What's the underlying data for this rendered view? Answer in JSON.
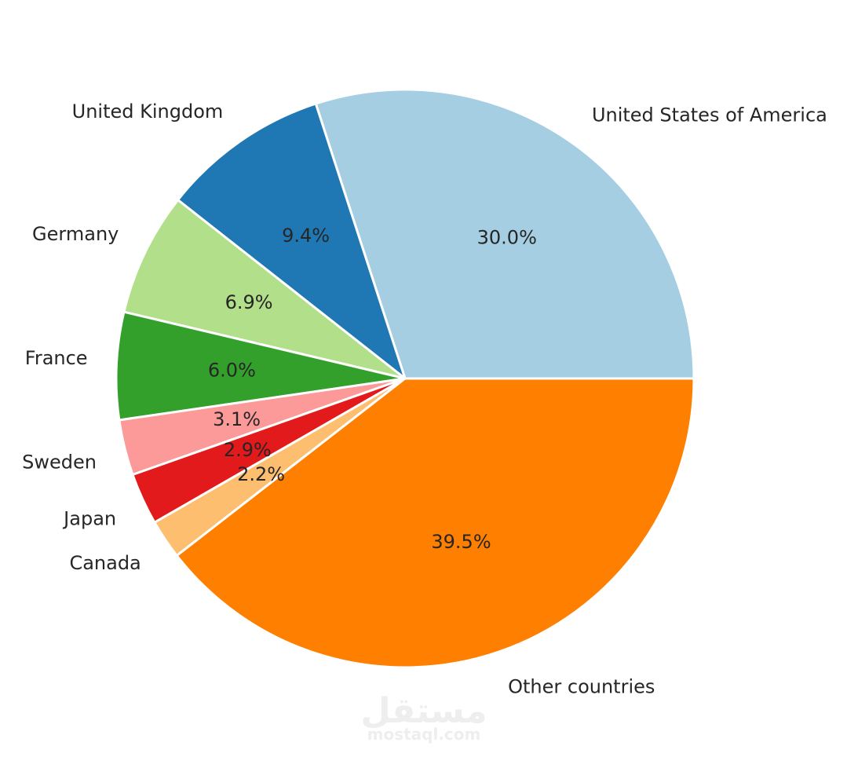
{
  "chart_data": {
    "type": "pie",
    "start_angle_deg": 0,
    "direction": "counterclockwise",
    "categories": [
      "United States of America",
      "United Kingdom",
      "Germany",
      "France",
      "Sweden",
      "Japan",
      "Canada",
      "Other countries"
    ],
    "values": [
      30.0,
      9.4,
      6.9,
      6.0,
      3.1,
      2.9,
      2.2,
      39.5
    ],
    "value_labels": [
      "30.0%",
      "9.4%",
      "6.9%",
      "6.0%",
      "3.1%",
      "2.9%",
      "2.2%",
      "39.5%"
    ],
    "colors": [
      "#a6cee3",
      "#1f78b4",
      "#b2df8a",
      "#33a02c",
      "#fb9a99",
      "#e31a1c",
      "#fdbf6f",
      "#ff7f00"
    ]
  },
  "watermark": {
    "arabic": "مستقل",
    "latin": "mostaql.com"
  }
}
